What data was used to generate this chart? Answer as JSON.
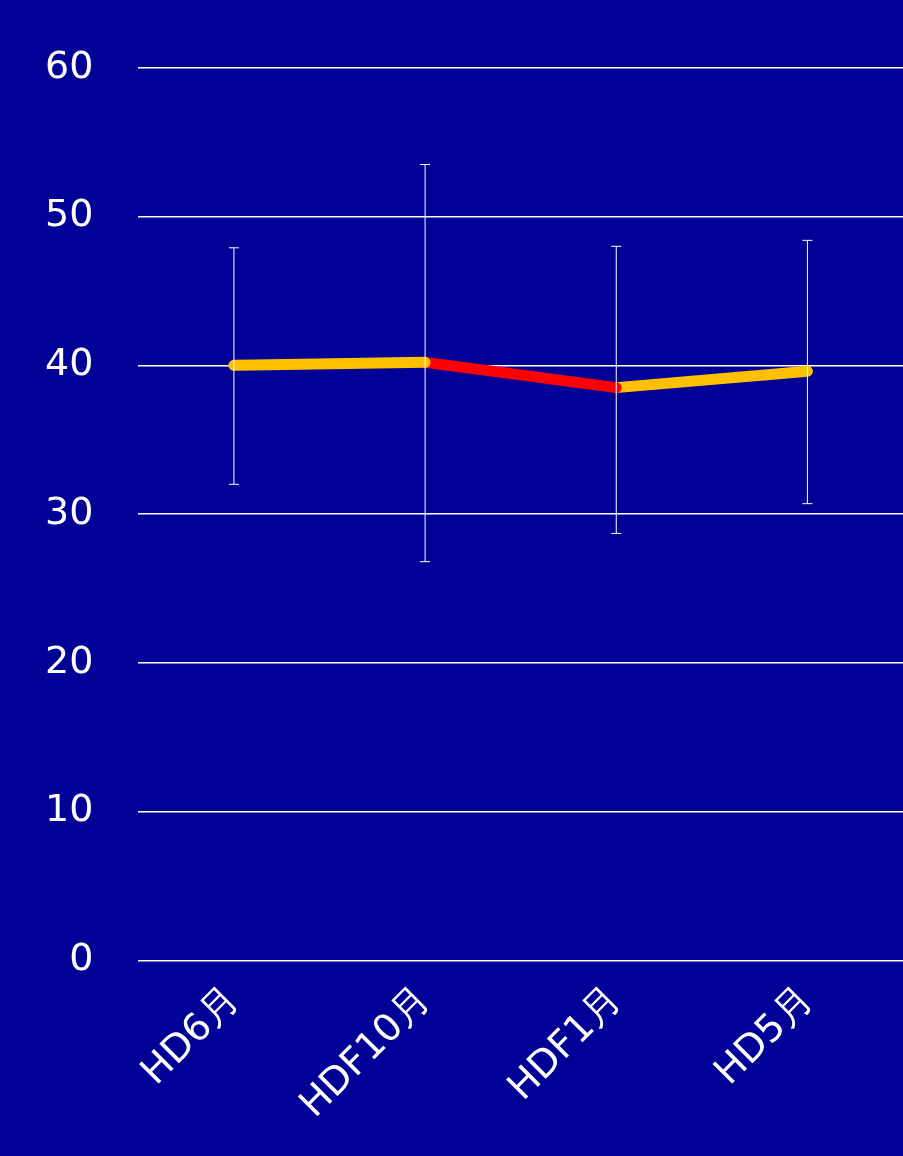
{
  "chart_data": {
    "type": "line",
    "categories": [
      "HD6月",
      "HDF10月",
      "HDF1月",
      "HD5月"
    ],
    "series": [
      {
        "color": "#ffc000",
        "values": [
          40.0,
          40.2,
          null,
          null
        ],
        "errors": [
          [
            32.0,
            47.9
          ],
          [
            26.8,
            53.5
          ],
          null,
          null
        ]
      },
      {
        "color": "#ff0000",
        "values": [
          null,
          40.2,
          38.5,
          null
        ],
        "errors": [
          null,
          null,
          [
            28.7,
            48.0
          ],
          null
        ]
      },
      {
        "color": "#ffc000",
        "values": [
          null,
          null,
          38.5,
          39.6
        ],
        "errors": [
          null,
          null,
          null,
          [
            30.7,
            48.4
          ]
        ]
      }
    ],
    "ylim": [
      0,
      60
    ],
    "yticks": [
      0,
      10,
      20,
      30,
      40,
      50,
      60
    ],
    "grid": "y",
    "legend": false,
    "line_style": "solid"
  }
}
